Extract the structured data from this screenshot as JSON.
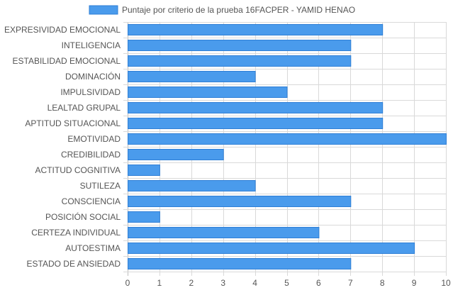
{
  "chart_data": {
    "type": "bar",
    "orientation": "horizontal",
    "categories": [
      "EXPRESIVIDAD EMOCIONAL",
      "INTELIGENCIA",
      "ESTABILIDAD EMOCIONAL",
      "DOMINACIÓN",
      "IMPULSIVIDAD",
      "LEALTAD GRUPAL",
      "APTITUD SITUACIONAL",
      "EMOTIVIDAD",
      "CREDIBILIDAD",
      "ACTITUD COGNITIVA",
      "SUTILEZA",
      "CONSCIENCIA",
      "POSICIÓN SOCIAL",
      "CERTEZA INDIVIDUAL",
      "AUTOESTIMA",
      "ESTADO DE ANSIEDAD"
    ],
    "series": [
      {
        "name": "Puntaje por criterio de la prueba 16FACPER - YAMID HENAO",
        "values": [
          8,
          7,
          7,
          4,
          5,
          8,
          8,
          10,
          3,
          1,
          4,
          7,
          1,
          6,
          9,
          7
        ]
      }
    ],
    "xlim": [
      0,
      10
    ],
    "xticks": [
      0,
      1,
      2,
      3,
      4,
      5,
      6,
      7,
      8,
      9,
      10
    ],
    "grid": true,
    "legend": "top",
    "colors": {
      "bar_fill": "#4a9bec",
      "bar_stroke": "#2f7fd6",
      "grid": "#d9d9d9",
      "axis": "#bdbdbd",
      "text": "#555555"
    }
  }
}
